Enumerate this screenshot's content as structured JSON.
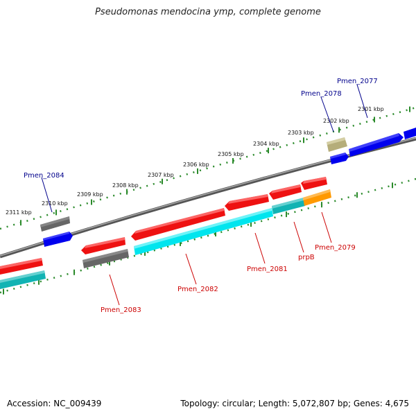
{
  "title": "Pseudomonas mendocina ymp, complete genome",
  "footer": {
    "accession": "Accession: NC_009439",
    "summary": "Topology: circular; Length: 5,072,807 bp; Genes: 4,675"
  },
  "colors": {
    "backbone": "#808080",
    "tick_dots": "#2a8a2a",
    "forward_label": "#00008b",
    "reverse_label": "#cc0000",
    "red": "#ee1111",
    "cyan": "#00e5ee",
    "teal": "#11b3b3",
    "orange": "#ff9900",
    "gray": "#666666",
    "blue": "#0000ee",
    "khaki": "#b5ad7a"
  },
  "scale_labels": [
    "2311 kbp",
    "2310 kbp",
    "2309 kbp",
    "2308 kbp",
    "2307 kbp",
    "2306 kbp",
    "2305 kbp",
    "2304 kbp",
    "2303 kbp",
    "2302 kbp",
    "2301 kbp"
  ],
  "gene_labels": {
    "forward": [
      "Pmen_2084",
      "Pmen_2078",
      "Pmen_2077"
    ],
    "reverse": [
      "Pmen_2083",
      "Pmen_2082",
      "Pmen_2081",
      "prpB",
      "Pmen_2079"
    ]
  }
}
